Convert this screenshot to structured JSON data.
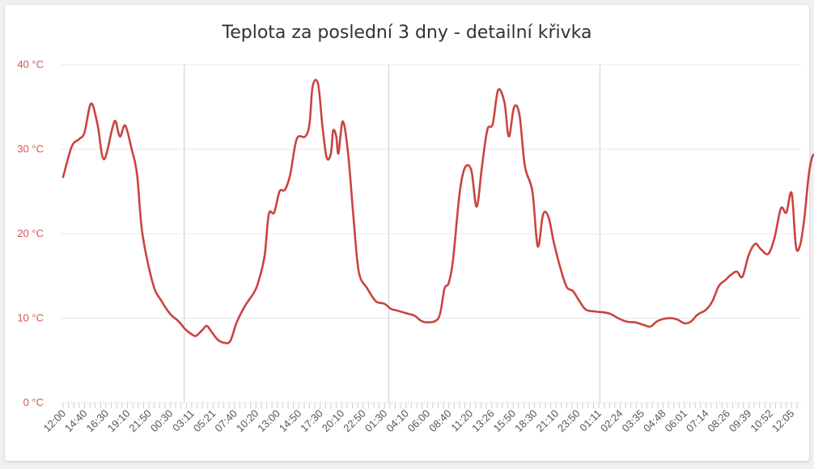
{
  "chart_data": {
    "type": "line",
    "title": "Teplota za poslední 3 dny - detailní křivka",
    "xlabel": "",
    "ylabel": "",
    "ylim": [
      0,
      40
    ],
    "y_ticks": [
      "0 °C",
      "10 °C",
      "20 °C",
      "30 °C",
      "40 °C"
    ],
    "x_tick_labels": [
      "12:00",
      "14:40",
      "16:30",
      "19:10",
      "21:50",
      "00:30",
      "03:11",
      "05:21",
      "07:40",
      "10:20",
      "13:00",
      "14:50",
      "17:30",
      "20:10",
      "22:50",
      "01:30",
      "04:10",
      "06:00",
      "08:40",
      "11:20",
      "13:26",
      "15:50",
      "18:30",
      "21:10",
      "23:50",
      "01:11",
      "02:24",
      "03:35",
      "04:48",
      "06:01",
      "07:14",
      "08:26",
      "09:39",
      "10:52",
      "12:05"
    ],
    "x_day_boundaries": [
      5.65,
      15.2,
      25.05
    ],
    "series": [
      {
        "values": [
          [
            0,
            26.7
          ],
          [
            0.4,
            30.3
          ],
          [
            0.75,
            31.2
          ],
          [
            1.0,
            32.0
          ],
          [
            1.3,
            35.4
          ],
          [
            1.6,
            33.0
          ],
          [
            1.9,
            28.8
          ],
          [
            2.3,
            32.5
          ],
          [
            2.45,
            33.3
          ],
          [
            2.65,
            31.5
          ],
          [
            2.9,
            32.8
          ],
          [
            3.2,
            30.0
          ],
          [
            3.45,
            27.0
          ],
          [
            3.7,
            20.0
          ],
          [
            4.2,
            14.0
          ],
          [
            4.6,
            12.0
          ],
          [
            5.0,
            10.5
          ],
          [
            5.4,
            9.6
          ],
          [
            5.7,
            8.7
          ],
          [
            6.0,
            8.1
          ],
          [
            6.2,
            7.9
          ],
          [
            6.5,
            8.6
          ],
          [
            6.7,
            9.1
          ],
          [
            6.9,
            8.5
          ],
          [
            7.2,
            7.5
          ],
          [
            7.5,
            7.1
          ],
          [
            7.8,
            7.3
          ],
          [
            8.1,
            9.5
          ],
          [
            8.5,
            11.5
          ],
          [
            8.9,
            13.0
          ],
          [
            9.1,
            14.2
          ],
          [
            9.4,
            17.3
          ],
          [
            9.6,
            22.3
          ],
          [
            9.85,
            22.5
          ],
          [
            10.1,
            25.0
          ],
          [
            10.35,
            25.2
          ],
          [
            10.6,
            27.0
          ],
          [
            10.9,
            31.2
          ],
          [
            11.3,
            31.5
          ],
          [
            11.5,
            33.0
          ],
          [
            11.65,
            37.5
          ],
          [
            11.9,
            37.7
          ],
          [
            12.1,
            32.8
          ],
          [
            12.3,
            29.0
          ],
          [
            12.5,
            29.5
          ],
          [
            12.6,
            32.2
          ],
          [
            12.75,
            31.5
          ],
          [
            12.85,
            29.5
          ],
          [
            13.05,
            33.3
          ],
          [
            13.3,
            29.5
          ],
          [
            13.55,
            22.0
          ],
          [
            13.8,
            15.5
          ],
          [
            14.2,
            13.5
          ],
          [
            14.6,
            12.0
          ],
          [
            15.0,
            11.7
          ],
          [
            15.3,
            11.1
          ],
          [
            15.6,
            10.9
          ],
          [
            16.0,
            10.6
          ],
          [
            16.4,
            10.3
          ],
          [
            16.7,
            9.7
          ],
          [
            17.0,
            9.5
          ],
          [
            17.4,
            9.7
          ],
          [
            17.6,
            10.6
          ],
          [
            17.8,
            13.5
          ],
          [
            18.0,
            14.2
          ],
          [
            18.2,
            17.0
          ],
          [
            18.5,
            24.7
          ],
          [
            18.75,
            27.8
          ],
          [
            19.05,
            27.5
          ],
          [
            19.3,
            23.2
          ],
          [
            19.55,
            28.0
          ],
          [
            19.8,
            32.3
          ],
          [
            20.05,
            33.0
          ],
          [
            20.3,
            37.0
          ],
          [
            20.6,
            35.5
          ],
          [
            20.8,
            31.5
          ],
          [
            21.05,
            35.0
          ],
          [
            21.3,
            34.0
          ],
          [
            21.55,
            28.0
          ],
          [
            21.9,
            25.0
          ],
          [
            22.15,
            18.5
          ],
          [
            22.4,
            22.3
          ],
          [
            22.65,
            22.0
          ],
          [
            22.9,
            19.0
          ],
          [
            23.2,
            16.0
          ],
          [
            23.5,
            13.7
          ],
          [
            23.8,
            13.2
          ],
          [
            24.1,
            12.0
          ],
          [
            24.4,
            11.0
          ],
          [
            24.8,
            10.8
          ],
          [
            25.2,
            10.7
          ],
          [
            25.55,
            10.5
          ],
          [
            25.9,
            10.0
          ],
          [
            26.3,
            9.6
          ],
          [
            26.7,
            9.5
          ],
          [
            27.1,
            9.2
          ],
          [
            27.4,
            9.0
          ],
          [
            27.7,
            9.6
          ],
          [
            28.0,
            9.9
          ],
          [
            28.4,
            10.0
          ],
          [
            28.7,
            9.8
          ],
          [
            29.0,
            9.4
          ],
          [
            29.3,
            9.6
          ],
          [
            29.6,
            10.4
          ],
          [
            30.0,
            11.0
          ],
          [
            30.3,
            12.0
          ],
          [
            30.6,
            13.8
          ],
          [
            30.9,
            14.5
          ],
          [
            31.2,
            15.2
          ],
          [
            31.45,
            15.5
          ],
          [
            31.7,
            14.9
          ],
          [
            32.0,
            17.5
          ],
          [
            32.3,
            18.8
          ],
          [
            32.55,
            18.2
          ],
          [
            32.9,
            17.6
          ],
          [
            33.2,
            19.5
          ],
          [
            33.5,
            23.0
          ],
          [
            33.75,
            22.5
          ],
          [
            34.0,
            24.8
          ],
          [
            34.2,
            18.5
          ],
          [
            34.4,
            18.7
          ],
          [
            34.6,
            22.0
          ],
          [
            34.8,
            27.0
          ],
          [
            35.0,
            29.3
          ],
          [
            35.25,
            28.7
          ]
        ]
      }
    ],
    "colors": {
      "series": "#c94440",
      "ytick": "#d9534f",
      "grid": "#e8e8e8",
      "boundary": "#cfcfcf"
    },
    "grid": true,
    "legend": "none"
  }
}
